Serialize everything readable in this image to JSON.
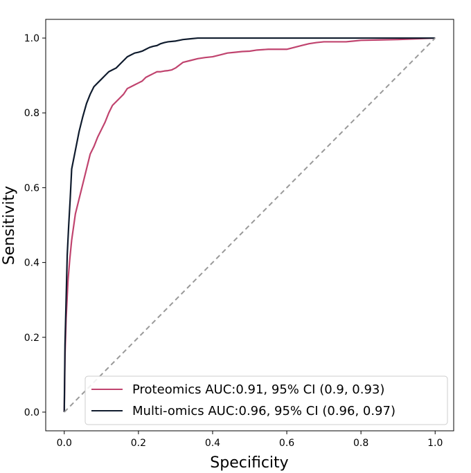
{
  "chart_data": {
    "type": "line",
    "xlabel": "Specificity",
    "ylabel": "Sensitivity",
    "xlim": [
      -0.05,
      1.05
    ],
    "ylim": [
      -0.05,
      1.05
    ],
    "xticks": [
      0.0,
      0.2,
      0.4,
      0.6,
      0.8,
      1.0
    ],
    "yticks": [
      0.0,
      0.2,
      0.4,
      0.6,
      0.8,
      1.0
    ],
    "tick_labels": [
      "0.0",
      "0.2",
      "0.4",
      "0.6",
      "0.8",
      "1.0"
    ],
    "grid": false,
    "legend_position": "bottom-right",
    "series": [
      {
        "name": "Proteomics AUC:0.91, 95% CI (0.9, 0.93)",
        "color": "#c0436e",
        "style": "solid",
        "x": [
          0.0,
          0.002,
          0.005,
          0.01,
          0.015,
          0.02,
          0.03,
          0.04,
          0.05,
          0.06,
          0.07,
          0.08,
          0.09,
          0.1,
          0.11,
          0.12,
          0.13,
          0.14,
          0.15,
          0.16,
          0.17,
          0.18,
          0.19,
          0.2,
          0.21,
          0.22,
          0.23,
          0.24,
          0.25,
          0.26,
          0.27,
          0.28,
          0.29,
          0.3,
          0.32,
          0.34,
          0.36,
          0.38,
          0.4,
          0.42,
          0.44,
          0.46,
          0.48,
          0.5,
          0.52,
          0.55,
          0.58,
          0.6,
          0.62,
          0.64,
          0.66,
          0.68,
          0.7,
          0.74,
          0.76,
          0.8,
          0.85,
          0.9,
          0.95,
          1.0
        ],
        "y": [
          0.0,
          0.15,
          0.25,
          0.35,
          0.41,
          0.46,
          0.53,
          0.57,
          0.61,
          0.65,
          0.69,
          0.71,
          0.735,
          0.755,
          0.775,
          0.8,
          0.82,
          0.83,
          0.84,
          0.85,
          0.865,
          0.87,
          0.875,
          0.88,
          0.885,
          0.895,
          0.9,
          0.905,
          0.91,
          0.91,
          0.912,
          0.913,
          0.915,
          0.92,
          0.935,
          0.94,
          0.945,
          0.948,
          0.95,
          0.955,
          0.96,
          0.962,
          0.964,
          0.965,
          0.968,
          0.97,
          0.97,
          0.97,
          0.975,
          0.98,
          0.985,
          0.988,
          0.99,
          0.99,
          0.99,
          0.994,
          0.995,
          0.996,
          0.998,
          1.0
        ]
      },
      {
        "name": "Multi-omics AUC:0.96, 95% CI (0.96, 0.97)",
        "color": "#0f1b2d",
        "style": "solid",
        "x": [
          0.0,
          0.002,
          0.005,
          0.008,
          0.012,
          0.016,
          0.02,
          0.03,
          0.04,
          0.05,
          0.06,
          0.07,
          0.08,
          0.09,
          0.1,
          0.11,
          0.12,
          0.13,
          0.14,
          0.15,
          0.16,
          0.17,
          0.18,
          0.19,
          0.2,
          0.21,
          0.22,
          0.23,
          0.24,
          0.25,
          0.26,
          0.27,
          0.28,
          0.3,
          0.32,
          0.34,
          0.36,
          0.4,
          0.5,
          0.58,
          0.6,
          0.7,
          0.8,
          0.9,
          1.0
        ],
        "y": [
          0.0,
          0.18,
          0.3,
          0.42,
          0.5,
          0.57,
          0.65,
          0.7,
          0.75,
          0.79,
          0.825,
          0.85,
          0.87,
          0.88,
          0.89,
          0.9,
          0.91,
          0.915,
          0.92,
          0.93,
          0.94,
          0.95,
          0.955,
          0.96,
          0.962,
          0.965,
          0.97,
          0.975,
          0.978,
          0.98,
          0.985,
          0.988,
          0.99,
          0.992,
          0.996,
          0.998,
          1.0,
          1.0,
          1.0,
          1.0,
          1.0,
          1.0,
          1.0,
          1.0,
          1.0
        ]
      },
      {
        "name": "",
        "color": "#999999",
        "style": "dashed",
        "x": [
          0.0,
          1.0
        ],
        "y": [
          0.0,
          1.0
        ]
      }
    ]
  }
}
